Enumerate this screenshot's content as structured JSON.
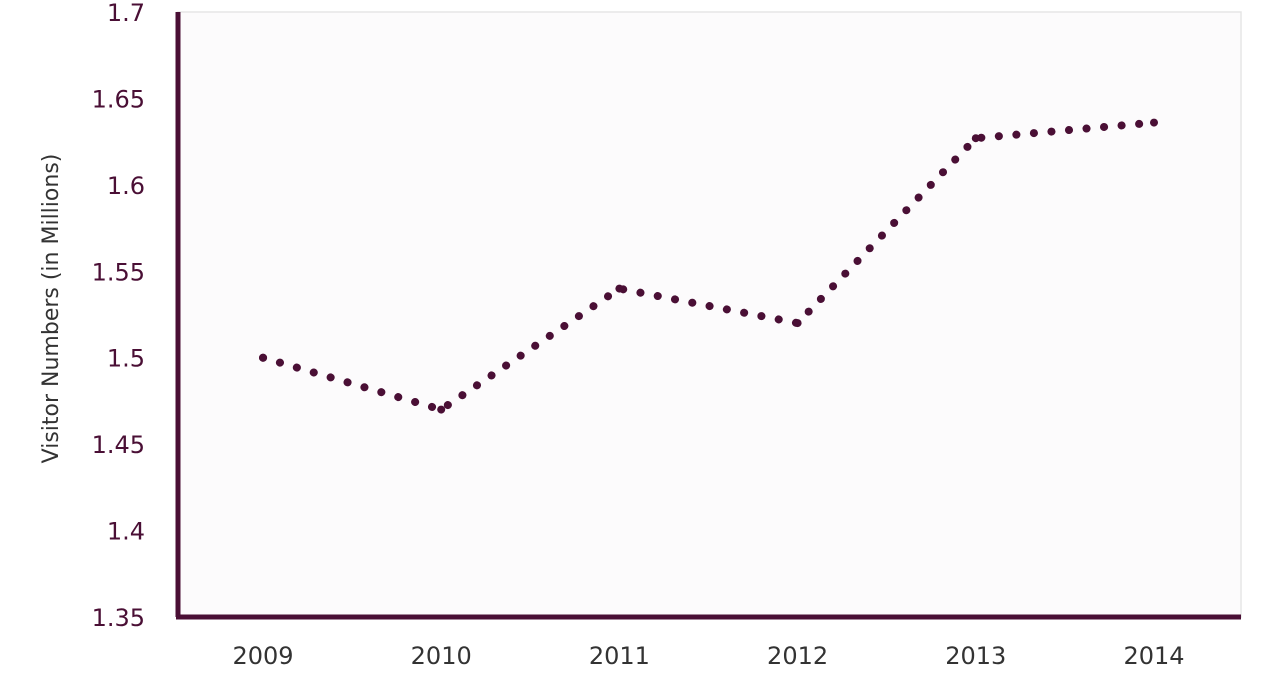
{
  "chart_data": {
    "type": "line",
    "title": "",
    "xlabel": "",
    "ylabel": "Visitor Numbers (in Millions)",
    "categories": [
      "2009",
      "2010",
      "2011",
      "2012",
      "2013",
      "2014"
    ],
    "series": [
      {
        "values": [
          1.5,
          1.47,
          1.54,
          1.52,
          1.627,
          1.636
        ]
      }
    ],
    "ylim": [
      1.35,
      1.7
    ],
    "yticks": [
      "1.35",
      "1.4",
      "1.45",
      "1.5",
      "1.55",
      "1.6",
      "1.65",
      "1.7"
    ],
    "grid": false,
    "legend": "none",
    "line_style": "dotted",
    "colors": {
      "series": "#4a0f35",
      "axis": "#4a0f35",
      "plot_background": "#fcfbfc",
      "plot_border": "#e6e6e6",
      "tick_label_y": "#4a0f35",
      "tick_label_x": "#333333",
      "axis_title": "#333333"
    }
  }
}
